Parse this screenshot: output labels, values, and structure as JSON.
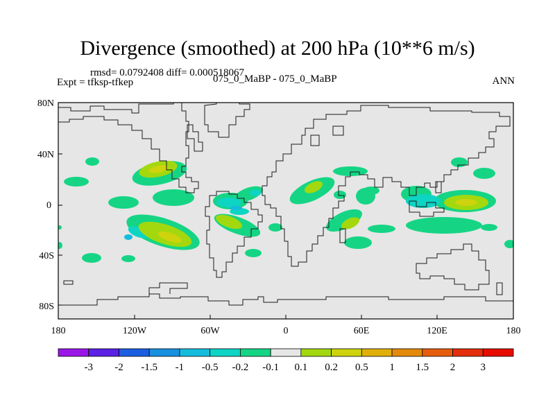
{
  "title": "Divergence (smoothed) at 200 hPa (10**6 m/s)",
  "stats_text": "rmsd= 0.0792408 diff= 0.000518067",
  "experiment_text": "Expt = tfksp-tfkep",
  "cases_text": "075_0_MaBP - 075_0_MaBP",
  "season": "ANN",
  "lat_ticks": [
    "80N",
    "40N",
    "0",
    "40S",
    "80S"
  ],
  "lon_ticks": [
    "180",
    "120W",
    "60W",
    "0",
    "60E",
    "120E",
    "180"
  ],
  "colorbar": {
    "labels": [
      "-3",
      "-2",
      "-1.5",
      "-1",
      "-0.5",
      "-0.2",
      "-0.1",
      "0.1",
      "0.2",
      "0.5",
      "1",
      "1.5",
      "2",
      "3"
    ],
    "colors": [
      "#9a16e6",
      "#5a20e4",
      "#1c5ee2",
      "#1890e0",
      "#14bcdc",
      "#0ed4c4",
      "#15d585",
      "#e6e6e6",
      "#a3d80e",
      "#cdd30c",
      "#e0b008",
      "#e48a0b",
      "#e65c0d",
      "#e32d0c",
      "#e60c00"
    ]
  },
  "field_colors": {
    "neutral": "#e6e6e6",
    "neg_small": "#15d585",
    "neg_mid": "#0ed4c4",
    "neg_large": "#14bcdc",
    "pos_small": "#a3d80e",
    "pos_mid": "#cdd30c"
  }
}
